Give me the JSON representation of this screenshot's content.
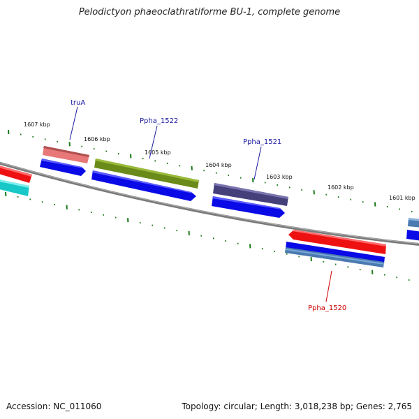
{
  "map": {
    "title": "Pelodictyon phaeoclathratiforme BU-1, complete genome",
    "accession": "Accession: NC_011060",
    "topology": "Topology: circular; Length: 3,018,238 bp; Genes: 2,765"
  },
  "ruler": {
    "labels": [
      "1607 kbp",
      "1606 kbp",
      "1605 kbp",
      "1604 kbp",
      "1603 kbp",
      "1602 kbp",
      "1601 kbp"
    ],
    "tick_color": "#1a7a1a"
  },
  "genes": {
    "labels": [
      {
        "text": "truA",
        "color": "#1a1aa0"
      },
      {
        "text": "Ppha_1522",
        "color": "#1a1aa0"
      },
      {
        "text": "Ppha_1521",
        "color": "#1a1aa0"
      },
      {
        "text": "Ppha_1520",
        "color": "#cc0000"
      }
    ]
  },
  "colors": {
    "backbone": "#7a7a7a",
    "cds": "#0a0ae6",
    "red_feature": "#ee1111",
    "pink_feature": "#e87878",
    "olive_feature": "#6a8a1a",
    "purple_feature": "#45407a",
    "cyan_feature": "#18c8c8",
    "steel_feature": "#4a7ab0"
  }
}
